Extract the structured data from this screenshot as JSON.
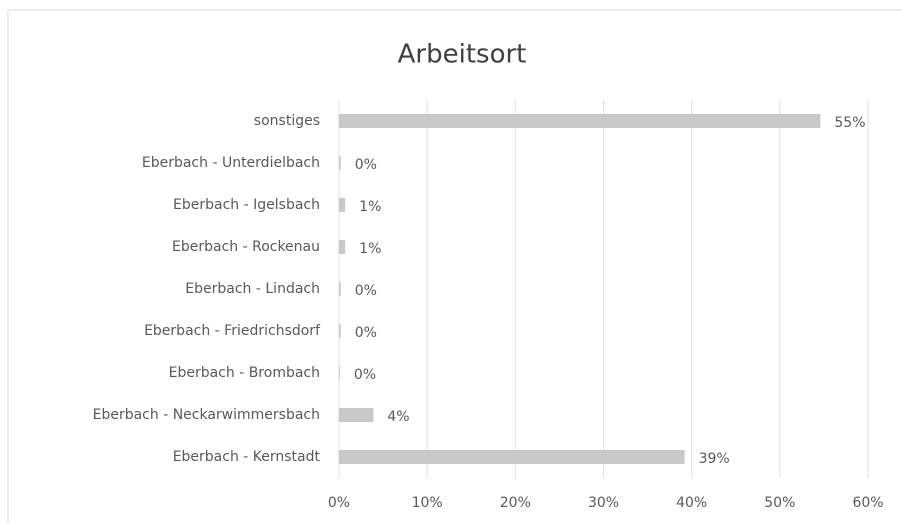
{
  "chart_data": {
    "type": "bar",
    "orientation": "horizontal",
    "title": "Arbeitsort",
    "categories": [
      "sonstiges",
      "Eberbach - Unterdielbach",
      "Eberbach - Igelsbach",
      "Eberbach - Rockenau",
      "Eberbach - Lindach",
      "Eberbach - Friedrichsdorf",
      "Eberbach - Brombach",
      "Eberbach - Neckarwimmersbach",
      "Eberbach - Kernstadt"
    ],
    "values": [
      54.6,
      0.2,
      0.7,
      0.7,
      0.2,
      0.2,
      0.1,
      3.9,
      39.2
    ],
    "value_labels": [
      "55%",
      "0%",
      "1%",
      "1%",
      "0%",
      "0%",
      "0%",
      "4%",
      "39%"
    ],
    "color": "#c9c9c9",
    "xlim": [
      0,
      60
    ],
    "xticks": [
      {
        "value": 0,
        "label": "0%"
      },
      {
        "value": 10,
        "label": "10%"
      },
      {
        "value": 20,
        "label": "20%"
      },
      {
        "value": 30,
        "label": "30%"
      },
      {
        "value": 40,
        "label": "40%"
      },
      {
        "value": 50,
        "label": "50%"
      },
      {
        "value": 60,
        "label": "60%"
      }
    ],
    "grid": true
  }
}
